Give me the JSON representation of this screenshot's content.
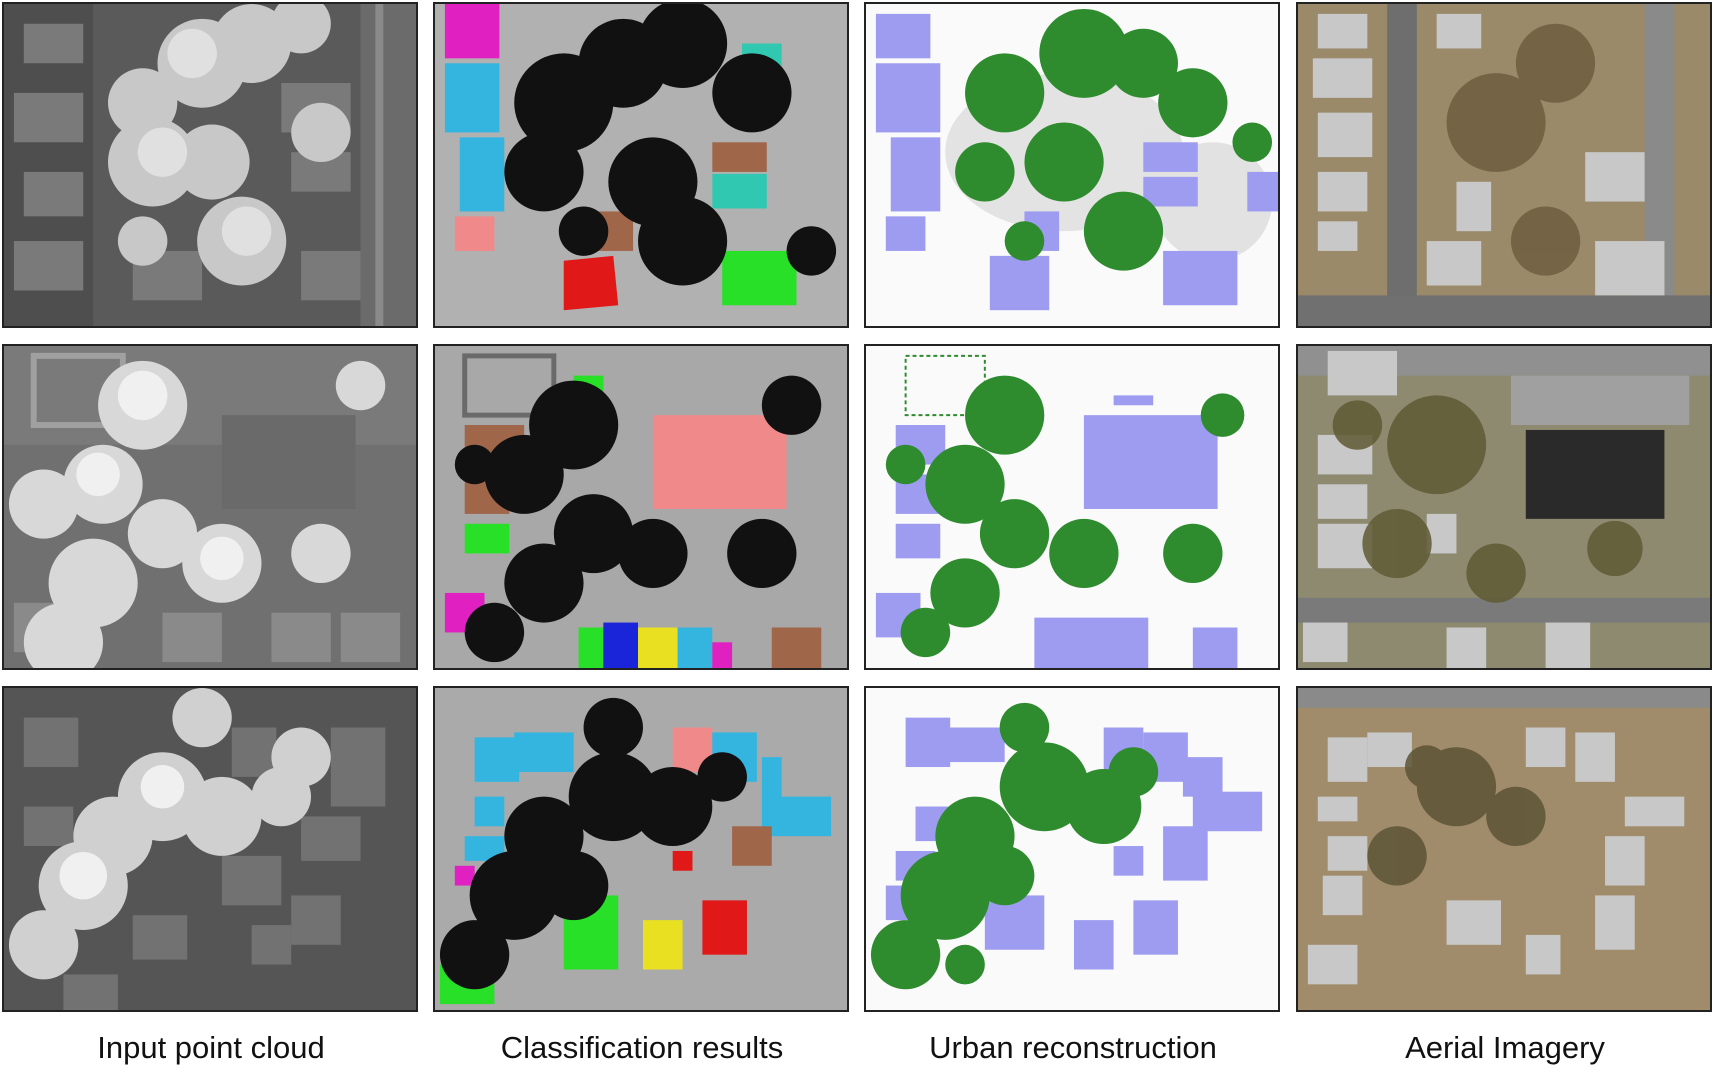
{
  "figure": {
    "captions": [
      "Input point cloud",
      "Classification results",
      "Urban reconstruction",
      "Aerial Imagery"
    ]
  },
  "colors": {
    "tree_black": "#111111",
    "ground_gray": "#9a9a9a",
    "building_lavender": "#9d9cf0",
    "tree_green": "#2e8b2e",
    "class_cyan": "#33b5e0",
    "class_magenta": "#e020c0",
    "class_pink": "#f08a8a",
    "class_brown": "#a0664a",
    "class_red": "#e01818",
    "class_green": "#28e028",
    "class_teal": "#30c8b0",
    "class_yellow": "#e8e020",
    "class_blue": "#1a24d8"
  }
}
